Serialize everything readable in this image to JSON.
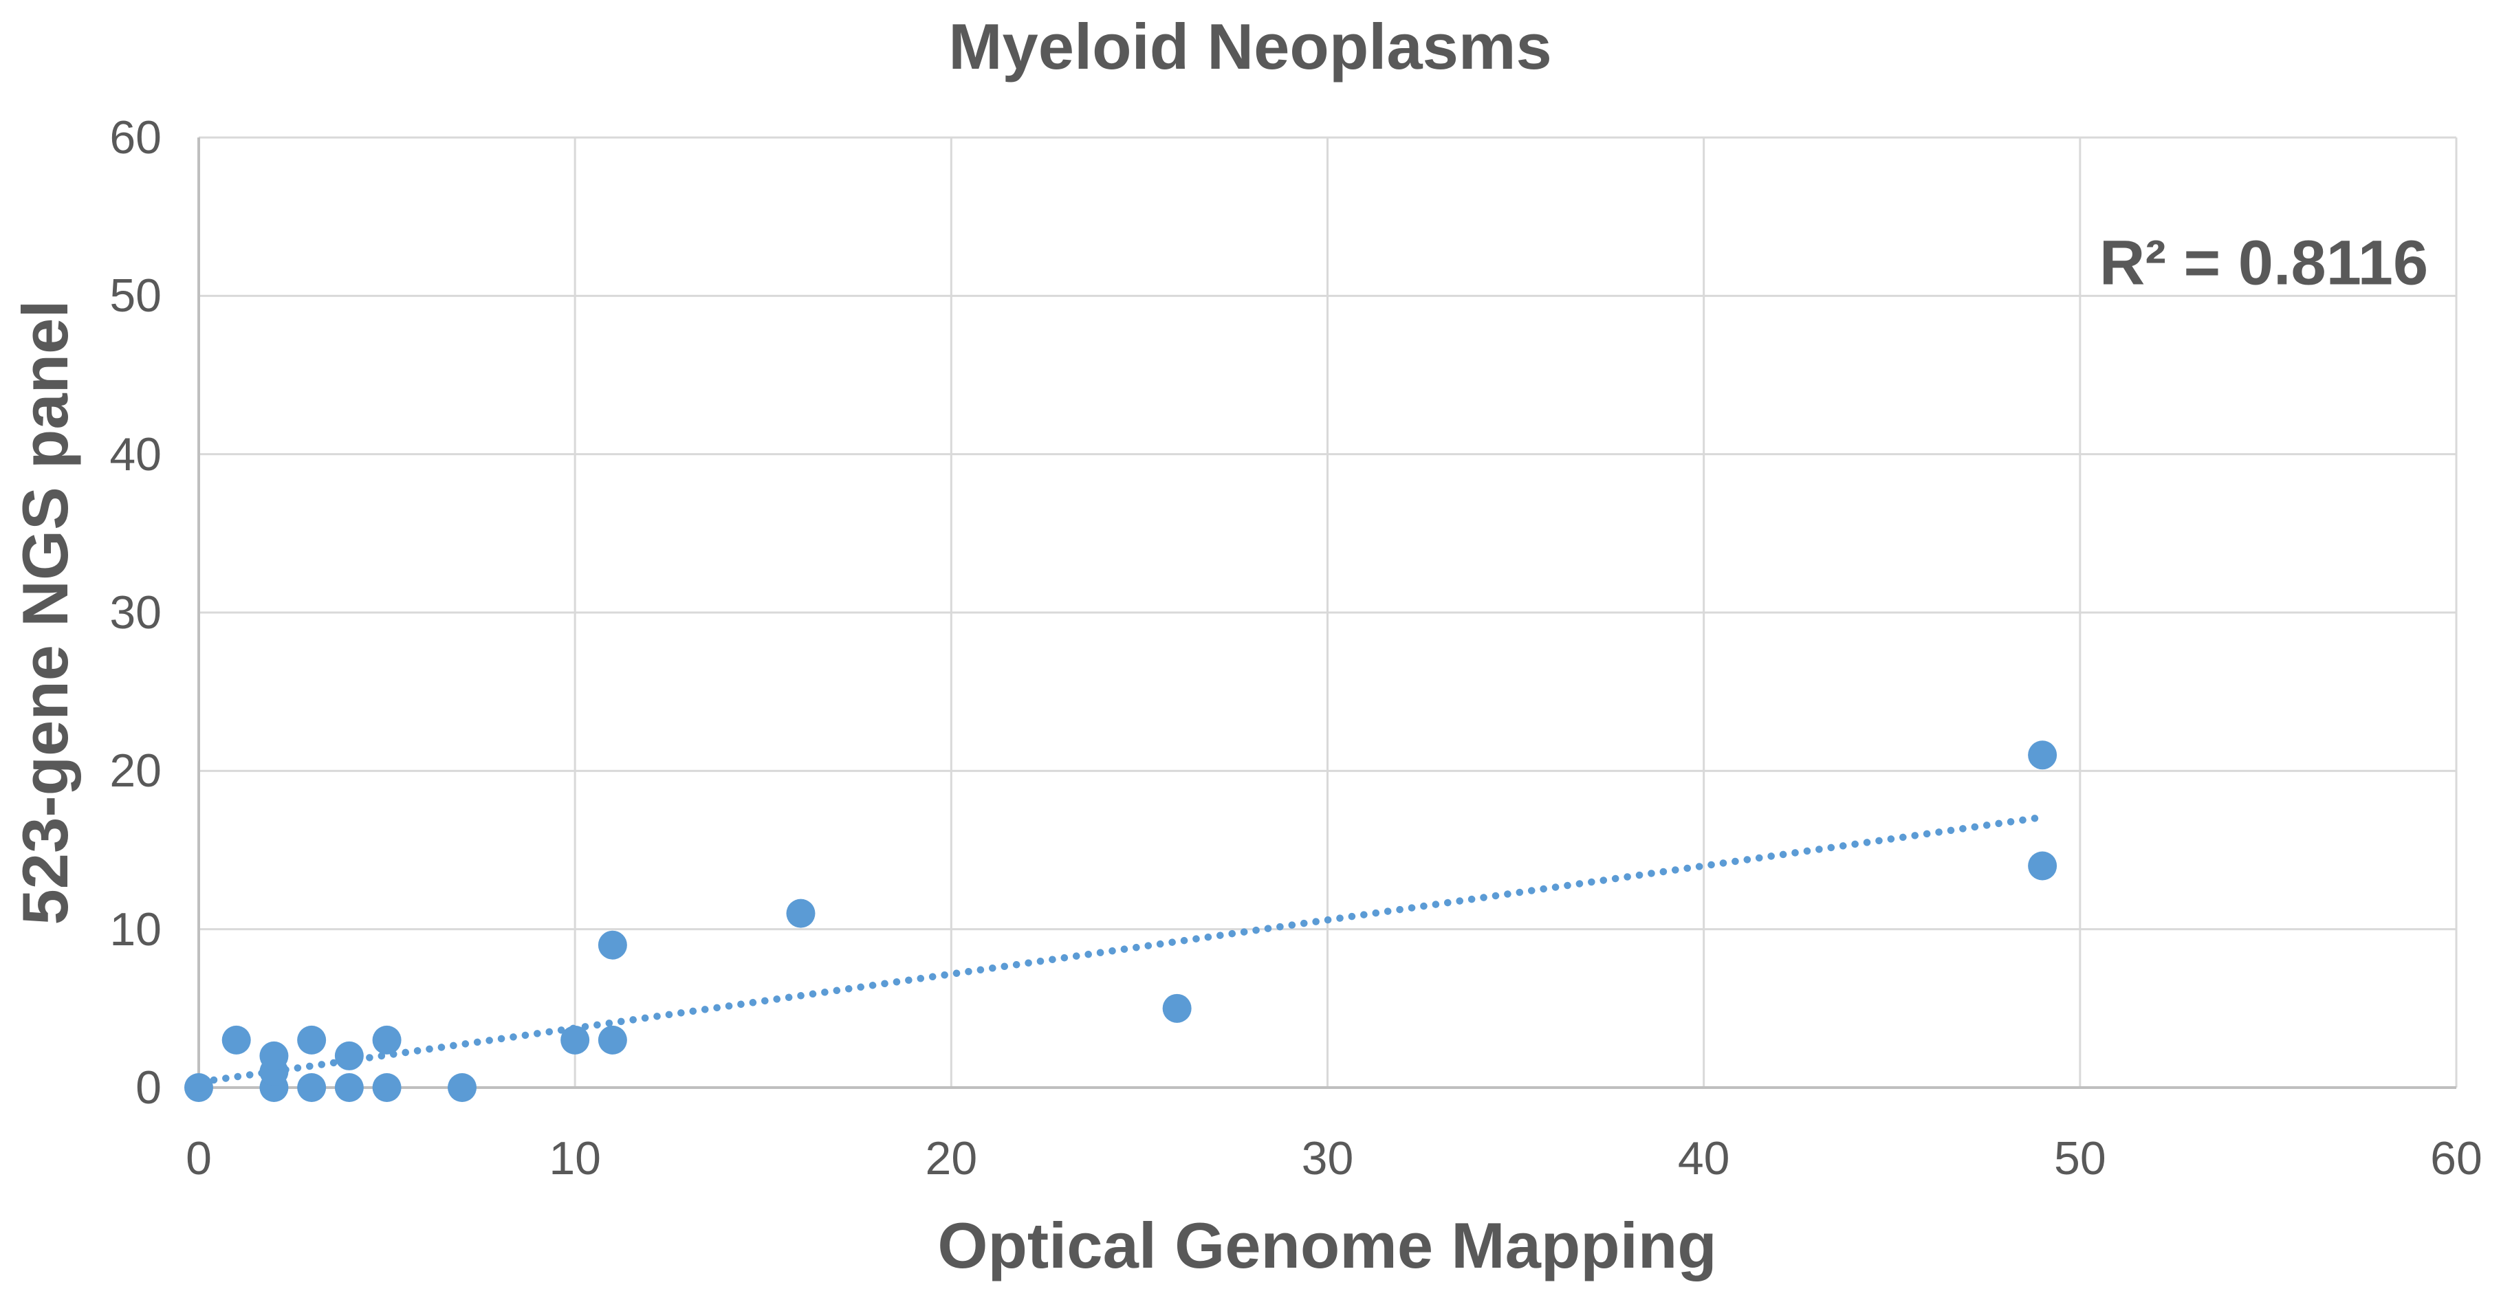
{
  "chart_data": {
    "type": "scatter",
    "title": "Myeloid Neoplasms",
    "xlabel": "Optical Genome Mapping",
    "ylabel": "523-gene NGS panel",
    "annotation": "R² = 0.8116",
    "r_squared": 0.8116,
    "xlim": [
      0,
      60
    ],
    "ylim": [
      0,
      60
    ],
    "xticks": [
      0,
      10,
      20,
      30,
      40,
      50,
      60
    ],
    "yticks": [
      0,
      10,
      20,
      30,
      40,
      50,
      60
    ],
    "grid": true,
    "legend": "none",
    "points": [
      [
        0,
        0
      ],
      [
        1,
        3
      ],
      [
        2,
        0
      ],
      [
        2,
        1
      ],
      [
        2,
        2
      ],
      [
        3,
        0
      ],
      [
        3,
        3
      ],
      [
        4,
        0
      ],
      [
        4,
        2
      ],
      [
        5,
        0
      ],
      [
        5,
        3
      ],
      [
        7,
        0
      ],
      [
        10,
        3
      ],
      [
        11,
        3
      ],
      [
        11,
        9
      ],
      [
        16,
        11
      ],
      [
        26,
        5
      ],
      [
        49,
        14
      ],
      [
        49,
        21
      ]
    ],
    "trendline": {
      "style": "dotted",
      "slope": 0.3415,
      "intercept": 0.34,
      "x_start": 0.4,
      "x_end": 48.8
    }
  },
  "colors": {
    "marker": "#5B9BD5",
    "trendline": "#5B9BD5",
    "gridline": "#D9D9D9",
    "axis_line": "#BFBFBF",
    "text": "#595959",
    "background": "#FFFFFF"
  }
}
